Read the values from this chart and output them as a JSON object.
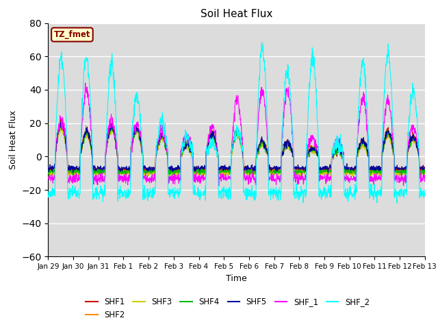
{
  "title": "Soil Heat Flux",
  "xlabel": "Time",
  "ylabel": "Soil Heat Flux",
  "ylim": [
    -60,
    80
  ],
  "yticks": [
    -60,
    -40,
    -20,
    0,
    20,
    40,
    60,
    80
  ],
  "background_color": "#DCDCDC",
  "series_colors": {
    "SHF1": "#CC0000",
    "SHF2": "#FF8800",
    "SHF3": "#CCCC00",
    "SHF4": "#00BB00",
    "SHF5": "#000099",
    "SHF_1": "#FF00FF",
    "SHF_2": "#00FFFF"
  },
  "tz_label": "TZ_fmet",
  "tz_bg": "#FFFFCC",
  "tz_border": "#880000",
  "x_tick_labels": [
    "Jan 29",
    "Jan 30",
    "Jan 31",
    "Feb 1",
    "Feb 2",
    "Feb 3",
    "Feb 4",
    "Feb 5",
    "Feb 6",
    "Feb 7",
    "Feb 8",
    "Feb 9",
    "Feb 10",
    "Feb 11",
    "Feb 12",
    "Feb 13"
  ],
  "n_days": 15,
  "pts_per_day": 96,
  "day_peak_shf1": [
    20,
    15,
    18,
    17,
    13,
    8,
    14,
    15,
    9,
    8,
    5,
    4,
    9,
    15,
    12
  ],
  "day_peak_shf2": [
    18,
    14,
    17,
    16,
    12,
    7,
    13,
    14,
    8,
    7,
    5,
    3,
    8,
    14,
    11
  ],
  "day_peak_shf3": [
    17,
    13,
    16,
    15,
    11,
    6,
    12,
    13,
    7,
    6,
    4,
    3,
    7,
    13,
    10
  ],
  "day_peak_shf4": [
    19,
    14,
    17,
    16,
    12,
    7,
    13,
    14,
    8,
    7,
    5,
    3,
    8,
    14,
    11
  ],
  "day_peak_shf5": [
    20,
    15,
    18,
    17,
    13,
    8,
    14,
    15,
    9,
    8,
    5,
    4,
    9,
    15,
    12
  ],
  "day_peak_shf_1": [
    22,
    40,
    22,
    20,
    15,
    12,
    18,
    34,
    40,
    40,
    11,
    10,
    35,
    34,
    18
  ],
  "day_peak_shf_2": [
    58,
    60,
    55,
    35,
    20,
    12,
    8,
    15,
    65,
    50,
    60,
    8,
    57,
    62,
    40
  ],
  "night_shf1": -8,
  "night_shf2": -9,
  "night_shf3": -10,
  "night_shf4": -9,
  "night_shf5": -7,
  "night_shf_1": -13,
  "night_shf_2": -22
}
